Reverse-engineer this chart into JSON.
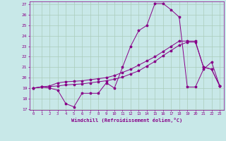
{
  "xlabel": "Windchill (Refroidissement éolien,°C)",
  "bg_color": "#c8e8e8",
  "grid_color": "#aaccbb",
  "line_color": "#880088",
  "xmin": 0,
  "xmax": 23,
  "ymin": 17,
  "ymax": 27,
  "series1_y": [
    19.0,
    19.1,
    19.0,
    18.8,
    17.5,
    17.2,
    18.5,
    18.5,
    18.5,
    19.5,
    19.0,
    21.0,
    23.0,
    24.5,
    25.0,
    27.1,
    27.1,
    26.5,
    25.8,
    19.1,
    19.1,
    20.8,
    21.5,
    19.2
  ],
  "series2_y": [
    19.0,
    19.1,
    19.2,
    19.5,
    19.6,
    19.65,
    19.7,
    19.8,
    19.9,
    20.0,
    20.2,
    20.5,
    20.8,
    21.2,
    21.6,
    22.0,
    22.5,
    23.0,
    23.5,
    23.5,
    23.5,
    21.0,
    20.8,
    19.2
  ],
  "series3_y": [
    19.0,
    19.1,
    19.15,
    19.2,
    19.3,
    19.35,
    19.4,
    19.5,
    19.6,
    19.7,
    19.85,
    20.05,
    20.35,
    20.65,
    21.1,
    21.55,
    22.1,
    22.6,
    23.1,
    23.4,
    23.4,
    21.0,
    20.8,
    19.2
  ]
}
